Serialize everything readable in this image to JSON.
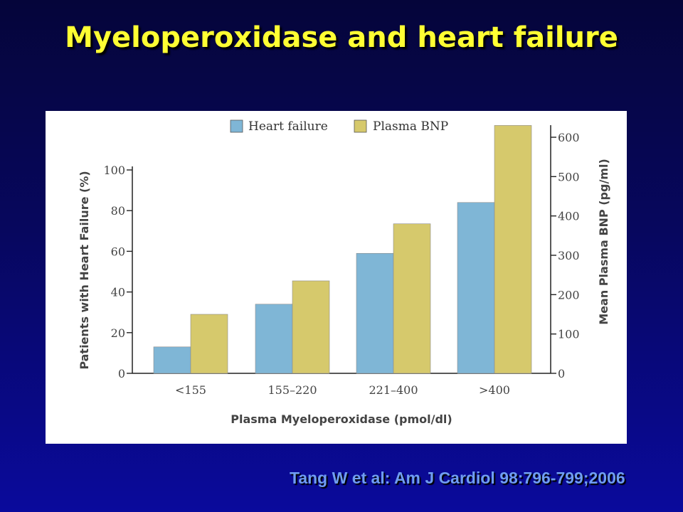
{
  "slide": {
    "title": "Myeloperoxidase and heart failure",
    "citation": "Tang W et al:  Am J Cardiol 98:796-799;2006"
  },
  "chart_data": {
    "type": "bar",
    "categories": [
      "<155",
      "155–220",
      "221–400",
      ">400"
    ],
    "series": [
      {
        "name": "Heart failure",
        "axis": "left",
        "color": "#7fb6d6",
        "values": [
          13,
          34,
          59,
          84
        ]
      },
      {
        "name": "Plasma BNP",
        "axis": "right",
        "color": "#d6c96c",
        "values": [
          150,
          235,
          380,
          630
        ]
      }
    ],
    "xlabel": "Plasma Myeloperoxidase (pmol/dl)",
    "ylabel_left": "Patients with Heart Failure (%)",
    "ylabel_right": "Mean Plasma BNP (pg/ml)",
    "ylim_left": [
      0,
      100
    ],
    "yticks_left": [
      0,
      20,
      40,
      60,
      80,
      100
    ],
    "ylim_right": [
      0,
      600
    ],
    "yticks_right": [
      0,
      100,
      200,
      300,
      400,
      500,
      600
    ],
    "grid": false,
    "legend_position": "top-center"
  }
}
